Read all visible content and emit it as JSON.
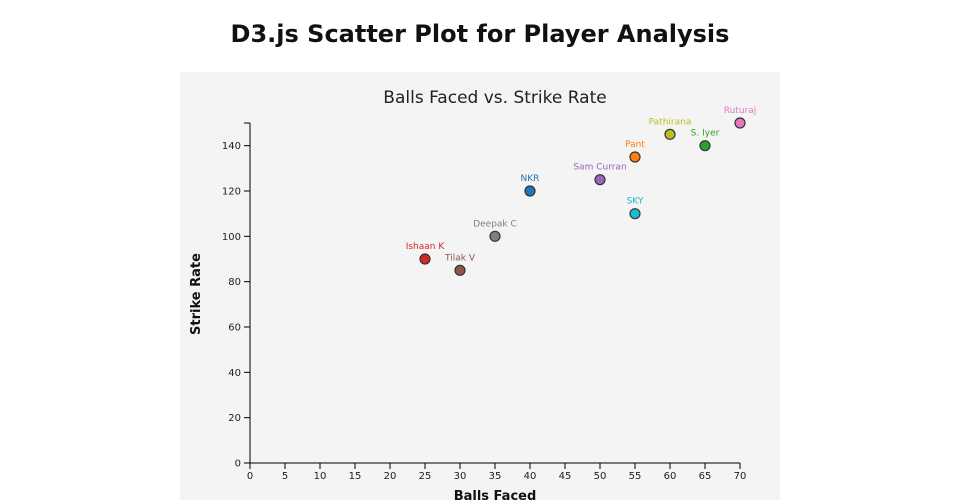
{
  "page": {
    "title": "D3.js Scatter Plot for Player Analysis"
  },
  "chart_data": {
    "type": "scatter",
    "title": "Balls Faced vs. Strike Rate",
    "xlabel": "Balls Faced",
    "ylabel": "Strike Rate",
    "xlim": [
      0,
      70
    ],
    "ylim": [
      0,
      150
    ],
    "x_ticks": [
      0,
      5,
      10,
      15,
      20,
      25,
      30,
      35,
      40,
      45,
      50,
      55,
      60,
      65,
      70
    ],
    "y_ticks": [
      0,
      20,
      40,
      60,
      80,
      100,
      120,
      140
    ],
    "grid": false,
    "legend": "none",
    "points": [
      {
        "label": "Ishaan K",
        "x": 25,
        "y": 90,
        "color": "#d62728"
      },
      {
        "label": "Tilak V",
        "x": 30,
        "y": 85,
        "color": "#8c564b"
      },
      {
        "label": "Deepak C",
        "x": 35,
        "y": 100,
        "color": "#7f7f7f"
      },
      {
        "label": "NKR",
        "x": 40,
        "y": 120,
        "color": "#1f77b4"
      },
      {
        "label": "Sam Curran",
        "x": 50,
        "y": 125,
        "color": "#9467bd"
      },
      {
        "label": "SKY",
        "x": 55,
        "y": 110,
        "color": "#17becf"
      },
      {
        "label": "Pant",
        "x": 55,
        "y": 135,
        "color": "#ff7f0e"
      },
      {
        "label": "Pathirana",
        "x": 60,
        "y": 145,
        "color": "#bcbd22"
      },
      {
        "label": "S. Iyer",
        "x": 65,
        "y": 140,
        "color": "#2ca02c"
      },
      {
        "label": "Ruturaj",
        "x": 70,
        "y": 150,
        "color": "#e377c2"
      }
    ]
  }
}
